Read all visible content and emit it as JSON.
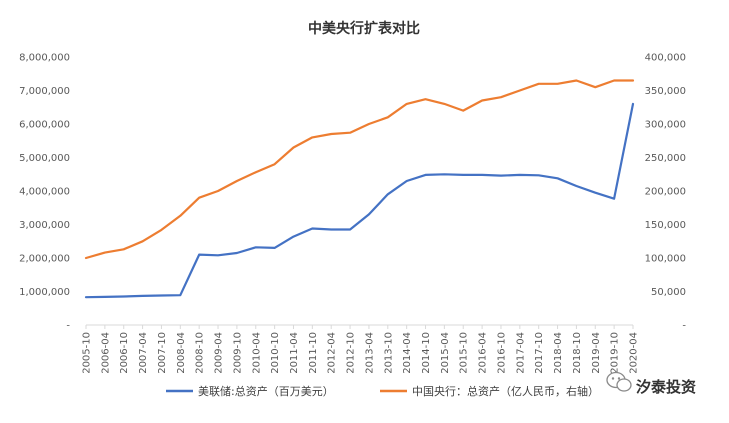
{
  "chart_data": {
    "type": "line",
    "title": "中美央行扩表对比",
    "x": [
      "2005-10",
      "2006-04",
      "2006-10",
      "2007-04",
      "2007-10",
      "2008-04",
      "2008-10",
      "2009-04",
      "2009-10",
      "2010-04",
      "2010-10",
      "2011-04",
      "2011-10",
      "2012-04",
      "2012-10",
      "2013-04",
      "2013-10",
      "2014-04",
      "2014-10",
      "2015-04",
      "2015-10",
      "2016-04",
      "2016-10",
      "2017-04",
      "2017-10",
      "2018-04",
      "2018-10",
      "2019-04",
      "2019-10",
      "2020-04"
    ],
    "y_left_ticks": [
      "-",
      "1,000,000",
      "2,000,000",
      "3,000,000",
      "4,000,000",
      "5,000,000",
      "6,000,000",
      "7,000,000",
      "8,000,000"
    ],
    "y_right_ticks": [
      "-",
      "50,000",
      "100,000",
      "150,000",
      "200,000",
      "250,000",
      "300,000",
      "350,000",
      "400,000"
    ],
    "ylim_left": [
      0,
      8000000
    ],
    "ylim_right": [
      0,
      400000
    ],
    "series": [
      {
        "name": "美联储:总资产（百万美元）",
        "axis": "left",
        "color": "#4472C4",
        "values": [
          830000,
          840000,
          850000,
          870000,
          880000,
          890000,
          2100000,
          2080000,
          2150000,
          2320000,
          2300000,
          2640000,
          2880000,
          2850000,
          2850000,
          3300000,
          3900000,
          4300000,
          4480000,
          4500000,
          4480000,
          4480000,
          4460000,
          4480000,
          4470000,
          4380000,
          4150000,
          3950000,
          3770000,
          6600000
        ]
      },
      {
        "name": "中国央行：总资产（亿人民币，右轴）",
        "axis": "right",
        "color": "#ED7D31",
        "values": [
          100000,
          108000,
          113000,
          125000,
          142000,
          163000,
          190000,
          200000,
          215000,
          228000,
          240000,
          265000,
          280000,
          285000,
          287000,
          300000,
          310000,
          330000,
          337000,
          330000,
          320000,
          335000,
          340000,
          350000,
          360000,
          360000,
          365000,
          355000,
          365000,
          365000
        ]
      }
    ],
    "legend_position": "bottom",
    "grid": false
  },
  "watermark": {
    "text": "汐泰投资",
    "icon": "wechat-icon"
  }
}
